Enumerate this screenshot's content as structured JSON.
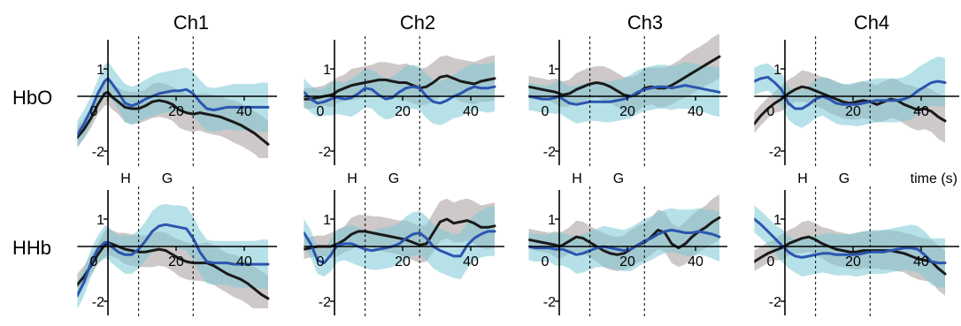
{
  "figure": {
    "channels": [
      "Ch1",
      "Ch2",
      "Ch3",
      "Ch4"
    ],
    "rows": [
      "HbO",
      "HHb"
    ],
    "phase_labels": [
      "H",
      "G"
    ],
    "time_label": "time (s)"
  },
  "colors": {
    "black_line": "#1a1a1a",
    "blue_line": "#2b55b0",
    "gray_band": "#bdb5b5",
    "cyan_band": "#7cc9d6"
  },
  "chart_data": [
    {
      "type": "line",
      "title": "Ch1",
      "row": "HbO",
      "xlim": [
        -9,
        47
      ],
      "ylim": [
        -2.5,
        1.7
      ],
      "vlines": [
        9,
        25
      ],
      "x": [
        -9,
        -7,
        -5,
        -3,
        -1,
        0,
        1,
        3,
        5,
        7,
        9,
        11,
        13,
        15,
        17,
        19,
        21,
        23,
        25,
        27,
        29,
        31,
        33,
        35,
        37,
        39,
        41,
        43,
        45,
        47
      ],
      "series": [
        {
          "values": [
            -1.5,
            -1.2,
            -0.8,
            -0.3,
            0.1,
            0.15,
            0.0,
            -0.2,
            -0.4,
            -0.45,
            -0.45,
            -0.35,
            -0.2,
            -0.15,
            -0.2,
            -0.3,
            -0.5,
            -0.6,
            -0.65,
            -0.6,
            -0.65,
            -0.7,
            -0.75,
            -0.85,
            -0.95,
            -1.05,
            -1.2,
            -1.35,
            -1.55,
            -1.75
          ]
        },
        {
          "values": [
            -1.4,
            -1.0,
            -0.5,
            0.1,
            0.55,
            0.65,
            0.5,
            0.15,
            -0.25,
            -0.35,
            -0.25,
            -0.1,
            0.0,
            0.1,
            0.15,
            0.2,
            0.2,
            0.25,
            0.1,
            -0.2,
            -0.45,
            -0.5,
            -0.45,
            -0.4,
            -0.4,
            -0.4,
            -0.4,
            -0.4,
            -0.4,
            -0.4
          ]
        }
      ]
    },
    {
      "type": "line",
      "title": "Ch2",
      "row": "HbO",
      "xlim": [
        -9,
        47
      ],
      "ylim": [
        -2.5,
        1.7
      ],
      "vlines": [
        9,
        25
      ],
      "x": [
        -9,
        -7,
        -5,
        -3,
        -1,
        0,
        1,
        3,
        5,
        7,
        9,
        11,
        13,
        15,
        17,
        19,
        21,
        23,
        25,
        27,
        29,
        31,
        33,
        35,
        37,
        39,
        41,
        43,
        45,
        47
      ],
      "series": [
        {
          "values": [
            -0.1,
            -0.1,
            -0.05,
            0.0,
            0.05,
            0.1,
            0.2,
            0.3,
            0.4,
            0.45,
            0.5,
            0.55,
            0.6,
            0.6,
            0.55,
            0.5,
            0.5,
            0.4,
            0.3,
            0.35,
            0.5,
            0.7,
            0.75,
            0.65,
            0.55,
            0.5,
            0.45,
            0.55,
            0.6,
            0.65
          ]
        },
        {
          "values": [
            0.15,
            -0.1,
            -0.25,
            -0.2,
            -0.1,
            -0.05,
            -0.05,
            -0.1,
            -0.05,
            0.1,
            0.3,
            0.25,
            0.05,
            -0.1,
            -0.05,
            0.15,
            0.3,
            0.35,
            0.3,
            0.0,
            -0.2,
            -0.25,
            -0.15,
            0.0,
            0.1,
            0.25,
            0.35,
            0.3,
            0.3,
            0.35
          ]
        }
      ]
    },
    {
      "type": "line",
      "title": "Ch3",
      "row": "HbO",
      "xlim": [
        -9,
        47
      ],
      "ylim": [
        -2.5,
        1.7
      ],
      "vlines": [
        9,
        25
      ],
      "x": [
        -9,
        -7,
        -5,
        -3,
        -1,
        0,
        1,
        3,
        5,
        7,
        9,
        11,
        13,
        15,
        17,
        19,
        21,
        23,
        25,
        27,
        29,
        31,
        33,
        35,
        37,
        39,
        41,
        43,
        45,
        47
      ],
      "series": [
        {
          "values": [
            0.35,
            0.3,
            0.25,
            0.2,
            0.15,
            0.1,
            0.05,
            0.1,
            0.25,
            0.35,
            0.45,
            0.5,
            0.45,
            0.35,
            0.2,
            0.05,
            0.0,
            0.1,
            0.3,
            0.35,
            0.3,
            0.3,
            0.4,
            0.55,
            0.7,
            0.85,
            1.0,
            1.15,
            1.3,
            1.45
          ]
        },
        {
          "values": [
            0.0,
            -0.05,
            -0.1,
            -0.1,
            -0.05,
            0.0,
            -0.1,
            -0.25,
            -0.3,
            -0.25,
            -0.2,
            -0.2,
            -0.2,
            -0.2,
            -0.15,
            -0.1,
            0.0,
            0.15,
            0.25,
            0.3,
            0.35,
            0.35,
            0.3,
            0.35,
            0.4,
            0.35,
            0.3,
            0.25,
            0.2,
            0.15
          ]
        }
      ]
    },
    {
      "type": "line",
      "title": "Ch4",
      "row": "HbO",
      "xlim": [
        -9,
        47
      ],
      "ylim": [
        -2.5,
        1.7
      ],
      "vlines": [
        9,
        25
      ],
      "x": [
        -9,
        -7,
        -5,
        -3,
        -1,
        0,
        1,
        3,
        5,
        7,
        9,
        11,
        13,
        15,
        17,
        19,
        21,
        23,
        25,
        27,
        29,
        31,
        33,
        35,
        37,
        39,
        41,
        43,
        45,
        47
      ],
      "series": [
        {
          "values": [
            -1.0,
            -0.7,
            -0.45,
            -0.25,
            -0.1,
            0.0,
            0.1,
            0.25,
            0.35,
            0.3,
            0.2,
            0.1,
            0.0,
            -0.1,
            -0.2,
            -0.25,
            -0.2,
            -0.15,
            -0.2,
            -0.3,
            -0.2,
            -0.1,
            -0.15,
            -0.3,
            -0.4,
            -0.5,
            -0.45,
            -0.55,
            -0.75,
            -0.9
          ]
        },
        {
          "values": [
            0.55,
            0.65,
            0.7,
            0.5,
            0.25,
            0.0,
            -0.25,
            -0.45,
            -0.45,
            -0.3,
            -0.1,
            0.0,
            -0.1,
            -0.25,
            -0.3,
            -0.3,
            -0.3,
            -0.25,
            -0.2,
            -0.15,
            -0.15,
            -0.15,
            -0.15,
            -0.1,
            0.0,
            0.2,
            0.35,
            0.5,
            0.55,
            0.5
          ]
        }
      ]
    },
    {
      "type": "line",
      "title": "Ch1",
      "row": "HHb",
      "xlim": [
        -9,
        47
      ],
      "ylim": [
        -2.5,
        1.7
      ],
      "vlines": [
        9,
        25
      ],
      "x": [
        -9,
        -7,
        -5,
        -3,
        -1,
        0,
        1,
        3,
        5,
        7,
        9,
        11,
        13,
        15,
        17,
        19,
        21,
        23,
        25,
        27,
        29,
        31,
        33,
        35,
        37,
        39,
        41,
        43,
        45,
        47
      ],
      "series": [
        {
          "values": [
            -1.4,
            -1.1,
            -0.7,
            -0.3,
            0.05,
            0.15,
            0.1,
            0.0,
            -0.1,
            -0.15,
            -0.2,
            -0.2,
            -0.15,
            -0.1,
            -0.15,
            -0.3,
            -0.45,
            -0.55,
            -0.6,
            -0.6,
            -0.6,
            -0.7,
            -0.85,
            -1.0,
            -1.1,
            -1.2,
            -1.35,
            -1.55,
            -1.75,
            -1.9
          ]
        },
        {
          "values": [
            -1.8,
            -1.3,
            -0.6,
            -0.1,
            0.15,
            0.15,
            0.0,
            -0.2,
            -0.3,
            -0.3,
            -0.1,
            0.2,
            0.55,
            0.75,
            0.8,
            0.75,
            0.7,
            0.65,
            0.3,
            -0.2,
            -0.55,
            -0.6,
            -0.6,
            -0.6,
            -0.65,
            -0.65,
            -0.65,
            -0.65,
            -0.65,
            -0.65
          ]
        }
      ]
    },
    {
      "type": "line",
      "title": "Ch2",
      "row": "HHb",
      "xlim": [
        -9,
        47
      ],
      "ylim": [
        -2.5,
        1.7
      ],
      "vlines": [
        9,
        25
      ],
      "x": [
        -9,
        -7,
        -5,
        -3,
        -1,
        0,
        1,
        3,
        5,
        7,
        9,
        11,
        13,
        15,
        17,
        19,
        21,
        23,
        25,
        27,
        29,
        31,
        33,
        35,
        37,
        39,
        41,
        43,
        45,
        47
      ],
      "series": [
        {
          "values": [
            -0.1,
            -0.05,
            0.0,
            0.0,
            0.0,
            0.05,
            0.1,
            0.25,
            0.45,
            0.55,
            0.55,
            0.5,
            0.45,
            0.4,
            0.35,
            0.3,
            0.25,
            0.15,
            0.05,
            0.1,
            0.5,
            0.9,
            1.0,
            0.85,
            0.9,
            0.95,
            0.85,
            0.7,
            0.7,
            0.75
          ]
        },
        {
          "values": [
            0.5,
            0.1,
            -0.5,
            -0.6,
            -0.3,
            -0.1,
            0.05,
            0.1,
            0.1,
            0.0,
            -0.1,
            -0.15,
            -0.1,
            -0.05,
            0.0,
            0.1,
            0.3,
            0.45,
            0.5,
            0.3,
            0.0,
            -0.15,
            -0.25,
            -0.35,
            -0.35,
            0.05,
            0.3,
            0.45,
            0.55,
            0.55
          ]
        }
      ]
    },
    {
      "type": "line",
      "title": "Ch3",
      "row": "HHb",
      "xlim": [
        -9,
        47
      ],
      "ylim": [
        -2.5,
        1.7
      ],
      "vlines": [
        9,
        25
      ],
      "x": [
        -9,
        -7,
        -5,
        -3,
        -1,
        0,
        1,
        3,
        5,
        7,
        9,
        11,
        13,
        15,
        17,
        19,
        21,
        23,
        25,
        27,
        29,
        31,
        33,
        35,
        37,
        39,
        41,
        43,
        45,
        47
      ],
      "series": [
        {
          "values": [
            0.25,
            0.2,
            0.15,
            0.1,
            0.05,
            0.0,
            0.05,
            0.2,
            0.35,
            0.3,
            0.15,
            0.0,
            -0.15,
            -0.25,
            -0.3,
            -0.25,
            -0.1,
            0.05,
            0.15,
            0.35,
            0.6,
            0.5,
            0.1,
            -0.05,
            0.1,
            0.35,
            0.55,
            0.7,
            0.9,
            1.05
          ]
        },
        {
          "values": [
            0.0,
            -0.05,
            -0.05,
            -0.05,
            -0.1,
            -0.1,
            -0.1,
            -0.2,
            -0.3,
            -0.25,
            -0.15,
            -0.05,
            0.0,
            -0.05,
            -0.1,
            -0.15,
            -0.1,
            0.05,
            0.2,
            0.3,
            0.45,
            0.55,
            0.6,
            0.55,
            0.5,
            0.5,
            0.55,
            0.5,
            0.45,
            0.35
          ]
        }
      ]
    },
    {
      "type": "line",
      "title": "Ch4",
      "row": "HHb",
      "xlim": [
        -9,
        47
      ],
      "ylim": [
        -2.5,
        1.7
      ],
      "vlines": [
        9,
        25
      ],
      "x": [
        -9,
        -7,
        -5,
        -3,
        -1,
        0,
        1,
        3,
        5,
        7,
        9,
        11,
        13,
        15,
        17,
        19,
        21,
        23,
        25,
        27,
        29,
        31,
        33,
        35,
        37,
        39,
        41,
        43,
        45,
        47
      ],
      "series": [
        {
          "values": [
            -0.55,
            -0.4,
            -0.25,
            -0.15,
            -0.05,
            0.0,
            0.1,
            0.2,
            0.3,
            0.35,
            0.25,
            0.1,
            0.0,
            -0.1,
            -0.15,
            -0.2,
            -0.2,
            -0.15,
            -0.15,
            -0.15,
            -0.15,
            -0.15,
            -0.2,
            -0.25,
            -0.35,
            -0.45,
            -0.5,
            -0.55,
            -0.8,
            -1.0
          ]
        },
        {
          "values": [
            1.0,
            0.8,
            0.55,
            0.3,
            0.05,
            -0.05,
            -0.2,
            -0.35,
            -0.4,
            -0.35,
            -0.3,
            -0.25,
            -0.25,
            -0.3,
            -0.3,
            -0.3,
            -0.3,
            -0.25,
            -0.2,
            -0.2,
            -0.2,
            -0.15,
            -0.1,
            -0.05,
            -0.05,
            -0.1,
            -0.3,
            -0.55,
            -0.6,
            -0.6
          ]
        }
      ]
    }
  ]
}
